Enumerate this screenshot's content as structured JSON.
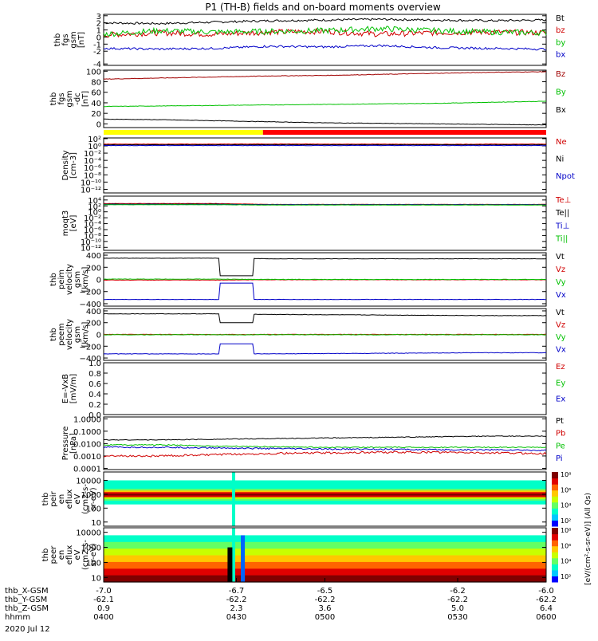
{
  "title": "P1 (TH-B) fields and on-board moments overview",
  "colors": {
    "black": "#000000",
    "red": "#d00000",
    "green": "#00c000",
    "blue": "#0000c8",
    "darkred": "#a00000",
    "yellow": "#ffff00",
    "barred": "#ff0000"
  },
  "chart_data": [
    {
      "type": "line",
      "id": "p1",
      "ylabel": [
        "thb",
        "fgs",
        "gsm",
        "[nT]"
      ],
      "ylim": [
        -4,
        3.2
      ],
      "yticks": [
        "3",
        "2",
        "1",
        "0",
        "-1",
        "-2",
        "-4"
      ],
      "ytick_values": [
        3,
        2,
        1,
        0,
        -1,
        -2,
        -3.8
      ],
      "series": [
        {
          "name": "Bt",
          "color": "black",
          "base": [
            2.0,
            1.9,
            2.1,
            2.3,
            2.4,
            2.5,
            2.4,
            2.3,
            2.4
          ],
          "noise": 0.15
        },
        {
          "name": "bz",
          "color": "red",
          "base": [
            0.3,
            0.6,
            0.4,
            0.7,
            0.8,
            0.4,
            0.6,
            0.7,
            0.6
          ],
          "noise": 0.4
        },
        {
          "name": "by",
          "color": "green",
          "base": [
            0.4,
            0.9,
            0.7,
            0.8,
            0.9,
            1.2,
            0.9,
            0.7,
            0.6
          ],
          "noise": 0.4
        },
        {
          "name": "bx",
          "color": "blue",
          "base": [
            -1.6,
            -1.7,
            -1.6,
            -1.3,
            -1.4,
            -1.2,
            -1.5,
            -1.6,
            -1.7
          ],
          "noise": 0.15
        }
      ]
    },
    {
      "type": "line",
      "id": "p2",
      "ylabel": [
        "thb",
        "fgs",
        "gsm",
        "-dc",
        "[nT]"
      ],
      "ylim": [
        -7,
        102
      ],
      "yticks": [
        "100",
        "80",
        "60",
        "40",
        "20",
        "0"
      ],
      "ytick_values": [
        100,
        80,
        60,
        40,
        20,
        0
      ],
      "series": [
        {
          "name": "Bz",
          "color": "darkred",
          "base": [
            85,
            87,
            89,
            91,
            92,
            94,
            96,
            98,
            99
          ],
          "noise": 0.5
        },
        {
          "name": "By",
          "color": "green",
          "base": [
            33,
            34,
            35,
            36,
            37,
            38,
            39,
            41,
            43
          ],
          "noise": 0.4
        },
        {
          "name": "Bx",
          "color": "black",
          "base": [
            9,
            8,
            6,
            4,
            2,
            1,
            0,
            -1,
            -2
          ],
          "noise": 0.4
        }
      ]
    },
    {
      "type": "line",
      "id": "p3",
      "log": true,
      "ylabel": [
        "Density",
        "[cm-3]"
      ],
      "ylim": [
        -13,
        2.2
      ],
      "yticks": [
        "10²",
        "10⁰",
        "10⁻²",
        "10⁻⁴",
        "10⁻⁶",
        "10⁻⁸",
        "10⁻¹⁰",
        "10⁻¹²"
      ],
      "ytick_values": [
        2,
        0,
        -2,
        -4,
        -6,
        -8,
        -10,
        -12
      ],
      "series": [
        {
          "name": "Ne",
          "color": "red",
          "base": [
            0.5,
            0.5,
            0.5,
            0.55,
            0.5,
            0.5,
            0.45,
            0.5,
            0.5
          ],
          "noise": 0.05
        },
        {
          "name": "Ni",
          "color": "black",
          "base": [
            0.3,
            0.3,
            0.3,
            0.35,
            0.3,
            0.3,
            0.3,
            0.3,
            0.3
          ],
          "noise": 0.05
        },
        {
          "name": "Npot",
          "color": "blue",
          "base": [
            0.1,
            0.1,
            0.1,
            0.1,
            0.1,
            0.1,
            0.1,
            0.1,
            0.1
          ],
          "noise": 0.05
        }
      ]
    },
    {
      "type": "line",
      "id": "p4",
      "log": true,
      "ylabel": [
        "moqt3",
        "[eV]"
      ],
      "ylim": [
        -13,
        5.3
      ],
      "yticks": [
        "10⁴",
        "10²",
        "10⁰",
        "10⁻²",
        "10⁻⁴",
        "10⁻⁶",
        "10⁻⁸",
        "10⁻¹⁰",
        "10⁻¹²"
      ],
      "ytick_values": [
        4,
        2,
        0,
        -2,
        -4,
        -6,
        -8,
        -10,
        -12
      ],
      "series": [
        {
          "name": "Te⊥",
          "color": "red",
          "base": [
            2.8,
            2.8,
            2.8,
            2.5,
            2.5,
            2.5,
            2.5,
            2.5,
            2.5
          ],
          "noise": 0.05
        },
        {
          "name": "Te||",
          "color": "black",
          "base": [
            2.6,
            2.6,
            2.6,
            2.4,
            2.4,
            2.4,
            2.4,
            2.4,
            2.4
          ],
          "noise": 0.05
        },
        {
          "name": "Ti⊥",
          "color": "blue",
          "base": [
            2.5,
            2.5,
            2.5,
            2.4,
            2.4,
            2.4,
            2.4,
            2.4,
            2.4
          ],
          "noise": 0.05
        },
        {
          "name": "Ti||",
          "color": "green",
          "base": [
            2.4,
            2.4,
            2.4,
            2.3,
            2.3,
            2.3,
            2.3,
            2.3,
            2.3
          ],
          "noise": 0.05
        }
      ]
    },
    {
      "type": "line",
      "id": "p5",
      "ylabel": [
        "thb",
        "peim",
        "velocity",
        "gsm",
        "[km/s]"
      ],
      "ylim": [
        -440,
        440
      ],
      "yticks": [
        "400",
        "200",
        "0",
        "−200",
        "−400"
      ],
      "ytick_values": [
        400,
        200,
        0,
        -200,
        -400
      ],
      "series": [
        {
          "name": "Vt",
          "color": "black",
          "base": [
            350,
            350,
            350,
            340,
            340,
            340,
            340,
            340,
            340
          ],
          "noise": 3
        },
        {
          "name": "Vz",
          "color": "red",
          "base": [
            -10,
            -10,
            -10,
            -5,
            -5,
            -5,
            -5,
            -5,
            -5
          ],
          "noise": 3
        },
        {
          "name": "Vy",
          "color": "green",
          "base": [
            5,
            5,
            5,
            0,
            0,
            0,
            0,
            0,
            0
          ],
          "noise": 3
        },
        {
          "name": "Vx",
          "color": "blue",
          "base": [
            -330,
            -330,
            -330,
            -330,
            -330,
            -330,
            -330,
            -330,
            -330
          ],
          "noise": 3
        }
      ]
    },
    {
      "type": "line",
      "id": "p6",
      "ylabel": [
        "thb",
        "peem",
        "velocity",
        "gsm",
        "[km/s]"
      ],
      "ylim": [
        -440,
        440
      ],
      "yticks": [
        "400",
        "200",
        "0",
        "−200",
        "−400"
      ],
      "ytick_values": [
        400,
        200,
        0,
        -200,
        -400
      ],
      "series": [
        {
          "name": "Vt",
          "color": "black",
          "base": [
            350,
            350,
            350,
            340,
            335,
            330,
            325,
            320,
            320
          ],
          "noise": 4
        },
        {
          "name": "Vz",
          "color": "red",
          "base": [
            0,
            0,
            0,
            0,
            0,
            0,
            0,
            0,
            0
          ],
          "noise": 4
        },
        {
          "name": "Vy",
          "color": "green",
          "base": [
            -5,
            -5,
            -5,
            -5,
            -5,
            -5,
            -5,
            -5,
            -5
          ],
          "noise": 4
        },
        {
          "name": "Vx",
          "color": "blue",
          "base": [
            -330,
            -330,
            -330,
            -330,
            -325,
            -320,
            -315,
            -310,
            -310
          ],
          "noise": 4
        }
      ]
    },
    {
      "type": "line",
      "id": "p7",
      "ylabel": [
        "E=-VxB",
        "[mV/m]"
      ],
      "ylim": [
        0,
        1.0
      ],
      "yticks": [
        "1.0",
        "0.8",
        "0.6",
        "0.4",
        "0.2",
        "0.0"
      ],
      "ytick_values": [
        1.0,
        0.8,
        0.6,
        0.4,
        0.2,
        0.0
      ],
      "series": [
        {
          "name": "Ez",
          "color": "red",
          "base": [],
          "noise": 0
        },
        {
          "name": "Ey",
          "color": "green",
          "base": [],
          "noise": 0
        },
        {
          "name": "Ex",
          "color": "blue",
          "base": [],
          "noise": 0
        }
      ]
    },
    {
      "type": "line",
      "id": "p8",
      "log": true,
      "ylabel": [
        "Pressure",
        "[nPa]"
      ],
      "ylim": [
        -4.1,
        0.15
      ],
      "yticks": [
        "1.0000",
        "0.1000",
        "0.0100",
        "0.0010",
        "0.0001"
      ],
      "ytick_values": [
        0,
        -1,
        -2,
        -3,
        -4
      ],
      "series": [
        {
          "name": "Pt",
          "color": "black",
          "base": [
            -1.7,
            -1.7,
            -1.65,
            -1.6,
            -1.55,
            -1.5,
            -1.45,
            -1.4,
            -1.4
          ],
          "noise": 0.03
        },
        {
          "name": "Pb",
          "color": "red",
          "base": [
            -3.0,
            -3.0,
            -2.9,
            -2.8,
            -2.75,
            -2.7,
            -2.7,
            -2.75,
            -2.8
          ],
          "noise": 0.08
        },
        {
          "name": "Pe",
          "color": "green",
          "base": [
            -2.1,
            -2.1,
            -2.2,
            -2.25,
            -2.3,
            -2.3,
            -2.3,
            -2.3,
            -2.3
          ],
          "noise": 0.04
        },
        {
          "name": "Pi",
          "color": "blue",
          "base": [
            -2.3,
            -2.3,
            -2.35,
            -2.4,
            -2.45,
            -2.45,
            -2.5,
            -2.5,
            -2.55
          ],
          "noise": 0.06
        }
      ]
    },
    {
      "type": "heatmap",
      "id": "p9",
      "ylabel": [
        "thb",
        "peir",
        "en",
        "eflux",
        "eV",
        "(cm2-s-",
        "sr-eV)"
      ],
      "ylim": [
        0.7,
        4.6
      ],
      "yticks": [
        "10000",
        "1000",
        "100",
        "10"
      ],
      "ytick_values": [
        4,
        3,
        2,
        1
      ],
      "colorbar_ticks": [
        "10⁸",
        "10⁶",
        "10⁴",
        "10²"
      ]
    },
    {
      "type": "heatmap",
      "id": "p10",
      "ylabel": [
        "thb",
        "peer",
        "en",
        "eflux",
        "eV",
        "(cm2-s-",
        "sr-eV)"
      ],
      "ylim": [
        0.7,
        4.3
      ],
      "yticks": [
        "10000",
        "1000",
        "100",
        "10"
      ],
      "ytick_values": [
        4,
        3,
        2,
        1
      ],
      "colorbar_ticks": [
        "10⁸",
        "10⁶",
        "10⁴",
        "10²"
      ]
    }
  ],
  "colorbar_label": "[eV/(cm²-s-sr-eV)] (All Qs)",
  "colorbar_label2": "[eV/(cm²-s-sr-eV)]",
  "status_bar": {
    "yellow_end_fraction": 0.36
  },
  "xaxis": {
    "ticks": [
      {
        "label": "-7.0",
        "x": -7.0
      },
      {
        "label": "-6.7",
        "x": -6.7
      },
      {
        "label": "-6.5",
        "x": -6.5
      },
      {
        "label": "-6.2",
        "x": -6.2
      },
      {
        "label": "-6.0",
        "x": -6.0
      }
    ],
    "rows": [
      {
        "name": "thb_X-GSM",
        "values": [
          "-7.0",
          "-6.7",
          "-6.5",
          "-6.2",
          "-6.0"
        ]
      },
      {
        "name": "thb_Y-GSM",
        "values": [
          "-62.1",
          "-62.2",
          "-62.2",
          "-62.2",
          "-62.2"
        ]
      },
      {
        "name": "thb_Z-GSM",
        "values": [
          "0.9",
          "2.3",
          "3.6",
          "5.0",
          "6.4"
        ]
      },
      {
        "name": "hhmm",
        "values": [
          "0400",
          "0430",
          "0500",
          "0530",
          "0600"
        ]
      }
    ],
    "date": "2020 Jul 12"
  }
}
